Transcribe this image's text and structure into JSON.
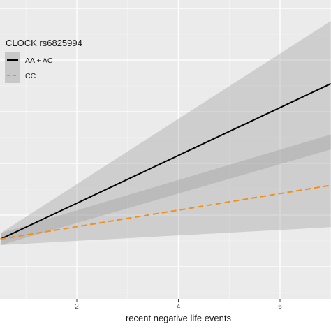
{
  "chart_data": {
    "type": "line",
    "xlabel": "recent negative life events",
    "ylabel": "",
    "xlim": [
      0.5,
      7
    ],
    "ylim": [
      0,
      1
    ],
    "x_ticks": [
      2,
      4,
      6
    ],
    "x_tick_labels": [
      "2",
      "4",
      "6"
    ],
    "grid": true,
    "confidence_bands": true,
    "legend": {
      "title": "CLOCK rs6825994",
      "placement": "top-left"
    },
    "series": [
      {
        "name": "AA + AC",
        "color": "#000000",
        "line_style": "solid",
        "x": [
          0.5,
          7
        ],
        "y": [
          0.2,
          0.72
        ],
        "ci_lower": [
          0.18,
          0.5
        ],
        "ci_upper": [
          0.22,
          0.93
        ]
      },
      {
        "name": "CC",
        "color": "#f28e1c",
        "line_style": "dashed",
        "x": [
          0.5,
          7
        ],
        "y": [
          0.2,
          0.38
        ],
        "ci_lower": [
          0.18,
          0.24
        ],
        "ci_upper": [
          0.22,
          0.55
        ]
      }
    ]
  }
}
